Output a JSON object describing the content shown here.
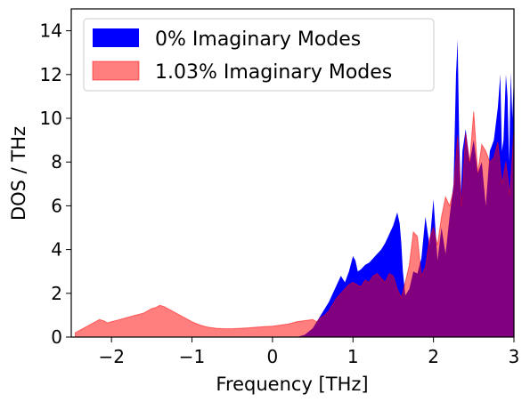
{
  "chart_data": {
    "type": "area",
    "xlabel": "Frequency [THz]",
    "ylabel": "DOS / THz",
    "xlim": [
      -2.5,
      3.0
    ],
    "ylim": [
      0,
      15
    ],
    "xticks": [
      -2,
      -1,
      0,
      1,
      2,
      3
    ],
    "xtick_labels": [
      "−2",
      "−1",
      "0",
      "1",
      "2",
      "3"
    ],
    "yticks": [
      0,
      2,
      4,
      6,
      8,
      10,
      12,
      14
    ],
    "grid": false,
    "legend_placement": "top-left",
    "overlap_color": "#800080",
    "series": [
      {
        "name": "0% Imaginary Modes",
        "color": "#0000ff",
        "opacity": 1.0,
        "x": [
          0.3,
          0.4,
          0.5,
          0.55,
          0.6,
          0.65,
          0.7,
          0.75,
          0.8,
          0.85,
          0.9,
          0.95,
          1.0,
          1.03,
          1.06,
          1.1,
          1.15,
          1.2,
          1.25,
          1.3,
          1.35,
          1.4,
          1.45,
          1.5,
          1.55,
          1.58,
          1.6,
          1.62,
          1.65,
          1.7,
          1.75,
          1.8,
          1.85,
          1.9,
          1.95,
          2.0,
          2.05,
          2.1,
          2.15,
          2.2,
          2.25,
          2.28,
          2.3,
          2.32,
          2.34,
          2.36,
          2.4,
          2.45,
          2.5,
          2.55,
          2.6,
          2.65,
          2.7,
          2.75,
          2.8,
          2.83,
          2.85,
          2.87,
          2.9,
          2.92,
          2.94,
          2.96,
          2.98,
          3.0
        ],
        "y": [
          0.0,
          0.1,
          0.4,
          0.7,
          1.0,
          1.3,
          1.6,
          2.0,
          2.4,
          2.8,
          2.5,
          3.0,
          3.7,
          3.5,
          3.0,
          3.1,
          3.3,
          3.4,
          3.6,
          3.8,
          4.0,
          4.3,
          4.7,
          5.1,
          5.7,
          5.2,
          4.3,
          3.0,
          1.9,
          2.2,
          3.0,
          2.9,
          3.6,
          5.5,
          4.2,
          6.3,
          3.5,
          5.0,
          3.8,
          5.5,
          7.0,
          12.0,
          13.6,
          9.0,
          6.5,
          8.5,
          9.5,
          8.0,
          9.0,
          7.5,
          8.0,
          6.0,
          8.5,
          9.0,
          10.5,
          12.0,
          8.5,
          9.0,
          12.0,
          11.0,
          8.0,
          12.1,
          10.0,
          12.0
        ]
      },
      {
        "name": "1.03% Imaginary Modes",
        "color": "#ff0000",
        "opacity": 0.5,
        "x": [
          -2.45,
          -2.4,
          -2.35,
          -2.3,
          -2.25,
          -2.2,
          -2.15,
          -2.1,
          -2.05,
          -2.0,
          -1.95,
          -1.9,
          -1.85,
          -1.8,
          -1.75,
          -1.7,
          -1.65,
          -1.6,
          -1.55,
          -1.5,
          -1.45,
          -1.4,
          -1.35,
          -1.3,
          -1.25,
          -1.2,
          -1.15,
          -1.1,
          -1.0,
          -0.9,
          -0.8,
          -0.7,
          -0.6,
          -0.5,
          -0.4,
          -0.3,
          -0.2,
          -0.1,
          0.0,
          0.1,
          0.2,
          0.3,
          0.4,
          0.5,
          0.55,
          0.6,
          0.65,
          0.7,
          0.75,
          0.8,
          0.85,
          0.9,
          0.95,
          1.0,
          1.05,
          1.1,
          1.15,
          1.2,
          1.25,
          1.3,
          1.35,
          1.4,
          1.45,
          1.5,
          1.55,
          1.6,
          1.65,
          1.7,
          1.75,
          1.8,
          1.85,
          1.9,
          1.95,
          2.0,
          2.05,
          2.1,
          2.15,
          2.2,
          2.25,
          2.3,
          2.35,
          2.4,
          2.45,
          2.5,
          2.55,
          2.6,
          2.65,
          2.7,
          2.75,
          2.8,
          2.85,
          2.9,
          2.95,
          3.0
        ],
        "y": [
          0.2,
          0.3,
          0.4,
          0.5,
          0.6,
          0.7,
          0.8,
          0.75,
          0.65,
          0.7,
          0.75,
          0.8,
          0.85,
          0.9,
          0.95,
          1.0,
          1.05,
          1.1,
          1.2,
          1.3,
          1.35,
          1.45,
          1.4,
          1.3,
          1.2,
          1.1,
          1.0,
          0.9,
          0.7,
          0.55,
          0.45,
          0.4,
          0.38,
          0.38,
          0.4,
          0.42,
          0.45,
          0.48,
          0.5,
          0.55,
          0.6,
          0.7,
          0.75,
          0.8,
          0.7,
          0.9,
          1.0,
          1.2,
          1.5,
          1.8,
          2.0,
          2.2,
          2.4,
          2.5,
          2.4,
          2.3,
          2.6,
          2.5,
          2.8,
          2.9,
          2.7,
          2.5,
          2.9,
          2.8,
          2.2,
          1.8,
          2.5,
          3.3,
          4.8,
          4.6,
          2.8,
          3.2,
          4.5,
          5.0,
          4.2,
          5.5,
          6.4,
          6.0,
          6.7,
          9.2,
          6.0,
          9.3,
          8.0,
          10.3,
          7.5,
          8.8,
          8.5,
          8.0,
          8.2,
          8.9,
          7.0,
          8.0,
          6.5,
          9.5
        ]
      }
    ]
  }
}
